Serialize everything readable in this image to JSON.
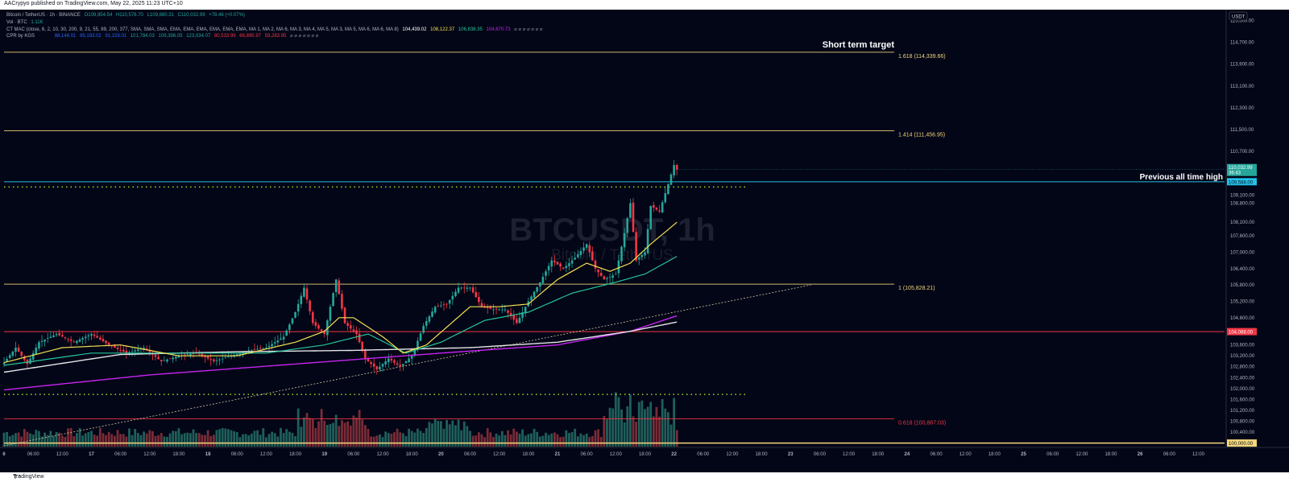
{
  "header": {
    "published": "AACrypyo published on TradingView.com, May 22, 2025 11:23 UTC+10"
  },
  "footer": {
    "brand": "TradingView"
  },
  "legend": {
    "symbol": "Bitcoin / TetherUS · 1h · BINANCE",
    "ohlc": [
      "O109,954.54",
      "H110,576.70",
      "L109,880.31",
      "C110,032.99",
      "+78.46 (+0.07%)"
    ],
    "vol": "Vol · BTC",
    "vol_value": "1.11K",
    "ctmac": "CT MAC (close, 6, 2, 10, 30, 200, 9, 21, 55, 89, 200, 377, SMA, SMA, SMA, EMA, EMA, EMA, EMA, EMA, EMA, MA 1, MA 2, MA 6, MA 3, MA 4, MA 5, MA 3, MA 5, MA 6, MA 6, MA 8)",
    "ctmac_values": [
      "104,439.02",
      "108,122.37",
      "106,838.35",
      "104,670.73"
    ],
    "ctmac_colors": [
      "#ffffff",
      "#f5e051",
      "#26c69a",
      "#c724f0"
    ],
    "cpr": "CPR by KGS",
    "cpr_values": [
      "88,146.01",
      "89,193.02",
      "91,159.01",
      "101,784.03",
      "109,396.05",
      "123,034.07",
      "80,533.99",
      "66,895.97",
      "59,283.95"
    ],
    "cpr_colors": [
      "#2962ff",
      "#2962ff",
      "#2962ff",
      "#26a69a",
      "#26a69a",
      "#26a69a",
      "#f23645",
      "#f23645",
      "#f23645"
    ]
  },
  "watermark": {
    "symbol": "BTCUSDT, 1h",
    "name": "Bitcoin / TetherUS"
  },
  "annotations": {
    "target": "Short term target",
    "ath": "Previous all time high"
  },
  "currency_button": "USDT",
  "price_tags": {
    "last": "110,032.99",
    "countdown": "36:43",
    "ath": "109,588.00",
    "support": "104,088.00",
    "bottom": "100,000.00"
  },
  "chart_data": {
    "type": "candlestick",
    "symbol": "BTCUSDT",
    "interval": "1h",
    "ylim": [
      99870,
      115900
    ],
    "y_ticks": [
      115500,
      114700,
      113900,
      113100,
      112300,
      111500,
      110700,
      109100,
      108800,
      108100,
      107600,
      107000,
      106400,
      105800,
      105200,
      104600,
      103600,
      103200,
      102800,
      102400,
      102000,
      101600,
      101200,
      100800,
      100400
    ],
    "x_ticks": [
      "6",
      "06:00",
      "12:00",
      "17",
      "06:00",
      "12:00",
      "18:00",
      "18",
      "06:00",
      "12:00",
      "18:00",
      "19",
      "06:00",
      "12:00",
      "18:00",
      "20",
      "06:00",
      "12:00",
      "18:00",
      "21",
      "06:00",
      "12:00",
      "18:00",
      "22",
      "06:00",
      "12:00",
      "18:00",
      "23",
      "06:00",
      "12:00",
      "18:00",
      "24",
      "06:00",
      "12:00",
      "18:00",
      "25",
      "06:00",
      "12:00",
      "18:00",
      "26",
      "06:00",
      "12:00"
    ],
    "fib_levels": [
      {
        "label": "1.618 (114,339.66)",
        "value": 114339.66,
        "color": "#f5d77a"
      },
      {
        "label": "1.414 (111,456.95)",
        "value": 111456.95,
        "color": "#f5d77a"
      },
      {
        "label": "1 (105,828.21)",
        "value": 105828.21,
        "color": "#f5d77a"
      },
      {
        "label": "0.618 (100,887.03)",
        "value": 100887.03,
        "color": "#f23645"
      }
    ],
    "horizontal_levels": [
      {
        "name": "ath",
        "value": 109588,
        "color": "#22c1e6"
      },
      {
        "name": "support",
        "value": 104088,
        "color": "#f23645"
      },
      {
        "name": "bottom",
        "value": 100000,
        "color": "#f5d77a"
      }
    ],
    "dotted_levels": [
      109396.05,
      101784.03
    ],
    "ohlc_anchors": [
      {
        "t": 0,
        "c": 102950
      },
      {
        "t": 4,
        "c": 103500
      },
      {
        "t": 8,
        "c": 102900
      },
      {
        "t": 12,
        "c": 103700
      },
      {
        "t": 18,
        "c": 104000
      },
      {
        "t": 24,
        "c": 103700
      },
      {
        "t": 30,
        "c": 104000
      },
      {
        "t": 36,
        "c": 103600
      },
      {
        "t": 42,
        "c": 103300
      },
      {
        "t": 48,
        "c": 103500
      },
      {
        "t": 54,
        "c": 103000
      },
      {
        "t": 60,
        "c": 103200
      },
      {
        "t": 66,
        "c": 103300
      },
      {
        "t": 72,
        "c": 103000
      },
      {
        "t": 78,
        "c": 103200
      },
      {
        "t": 84,
        "c": 103400
      },
      {
        "t": 90,
        "c": 103500
      },
      {
        "t": 96,
        "c": 103900
      },
      {
        "t": 100,
        "c": 104800
      },
      {
        "t": 103,
        "c": 105700
      },
      {
        "t": 106,
        "c": 104400
      },
      {
        "t": 110,
        "c": 104000
      },
      {
        "t": 114,
        "c": 106000
      },
      {
        "t": 117,
        "c": 104400
      },
      {
        "t": 121,
        "c": 104000
      },
      {
        "t": 124,
        "c": 103100
      },
      {
        "t": 128,
        "c": 102700
      },
      {
        "t": 132,
        "c": 103100
      },
      {
        "t": 136,
        "c": 102800
      },
      {
        "t": 140,
        "c": 103200
      },
      {
        "t": 144,
        "c": 104300
      },
      {
        "t": 148,
        "c": 105000
      },
      {
        "t": 152,
        "c": 105100
      },
      {
        "t": 156,
        "c": 105700
      },
      {
        "t": 160,
        "c": 105700
      },
      {
        "t": 164,
        "c": 105000
      },
      {
        "t": 168,
        "c": 104900
      },
      {
        "t": 172,
        "c": 104900
      },
      {
        "t": 176,
        "c": 104400
      },
      {
        "t": 180,
        "c": 105200
      },
      {
        "t": 184,
        "c": 105900
      },
      {
        "t": 188,
        "c": 106700
      },
      {
        "t": 192,
        "c": 106400
      },
      {
        "t": 196,
        "c": 106800
      },
      {
        "t": 200,
        "c": 107300
      },
      {
        "t": 203,
        "c": 106400
      },
      {
        "t": 206,
        "c": 106000
      },
      {
        "t": 210,
        "c": 106200
      },
      {
        "t": 213,
        "c": 107700
      },
      {
        "t": 215,
        "c": 108800
      },
      {
        "t": 217,
        "c": 106700
      },
      {
        "t": 220,
        "c": 107000
      },
      {
        "t": 222,
        "c": 108700
      },
      {
        "t": 225,
        "c": 108500
      },
      {
        "t": 228,
        "c": 109500
      },
      {
        "t": 230,
        "c": 110200
      },
      {
        "t": 231,
        "c": 110033
      }
    ],
    "ema_fast": [
      {
        "t": 0,
        "v": 102950
      },
      {
        "t": 20,
        "v": 103500
      },
      {
        "t": 40,
        "v": 103600
      },
      {
        "t": 60,
        "v": 103200
      },
      {
        "t": 80,
        "v": 103200
      },
      {
        "t": 100,
        "v": 103700
      },
      {
        "t": 110,
        "v": 104100
      },
      {
        "t": 115,
        "v": 104600
      },
      {
        "t": 120,
        "v": 104600
      },
      {
        "t": 130,
        "v": 103900
      },
      {
        "t": 137,
        "v": 103300
      },
      {
        "t": 145,
        "v": 103600
      },
      {
        "t": 160,
        "v": 105000
      },
      {
        "t": 170,
        "v": 105000
      },
      {
        "t": 180,
        "v": 105100
      },
      {
        "t": 190,
        "v": 106000
      },
      {
        "t": 200,
        "v": 106600
      },
      {
        "t": 208,
        "v": 106300
      },
      {
        "t": 215,
        "v": 106600
      },
      {
        "t": 222,
        "v": 107300
      },
      {
        "t": 231,
        "v": 108100
      }
    ],
    "ema_mid": [
      {
        "t": 0,
        "v": 102850
      },
      {
        "t": 30,
        "v": 103300
      },
      {
        "t": 60,
        "v": 103300
      },
      {
        "t": 90,
        "v": 103300
      },
      {
        "t": 110,
        "v": 103600
      },
      {
        "t": 125,
        "v": 104000
      },
      {
        "t": 138,
        "v": 103300
      },
      {
        "t": 150,
        "v": 103700
      },
      {
        "t": 165,
        "v": 104500
      },
      {
        "t": 180,
        "v": 104800
      },
      {
        "t": 195,
        "v": 105500
      },
      {
        "t": 210,
        "v": 105900
      },
      {
        "t": 220,
        "v": 106200
      },
      {
        "t": 231,
        "v": 106850
      }
    ],
    "sma_slow": [
      {
        "t": 0,
        "v": 102600
      },
      {
        "t": 40,
        "v": 103250
      },
      {
        "t": 80,
        "v": 103350
      },
      {
        "t": 120,
        "v": 103400
      },
      {
        "t": 160,
        "v": 103500
      },
      {
        "t": 190,
        "v": 103700
      },
      {
        "t": 215,
        "v": 104100
      },
      {
        "t": 231,
        "v": 104440
      }
    ],
    "ma_purple": [
      {
        "t": 0,
        "v": 101950
      },
      {
        "t": 50,
        "v": 102500
      },
      {
        "t": 100,
        "v": 102900
      },
      {
        "t": 150,
        "v": 103300
      },
      {
        "t": 190,
        "v": 103600
      },
      {
        "t": 215,
        "v": 104100
      },
      {
        "t": 231,
        "v": 104670
      }
    ],
    "trendline": [
      {
        "t": 0,
        "v": 99900
      },
      {
        "t": 277,
        "v": 105800
      }
    ],
    "volume_max": 100,
    "volume_base": 99870
  }
}
